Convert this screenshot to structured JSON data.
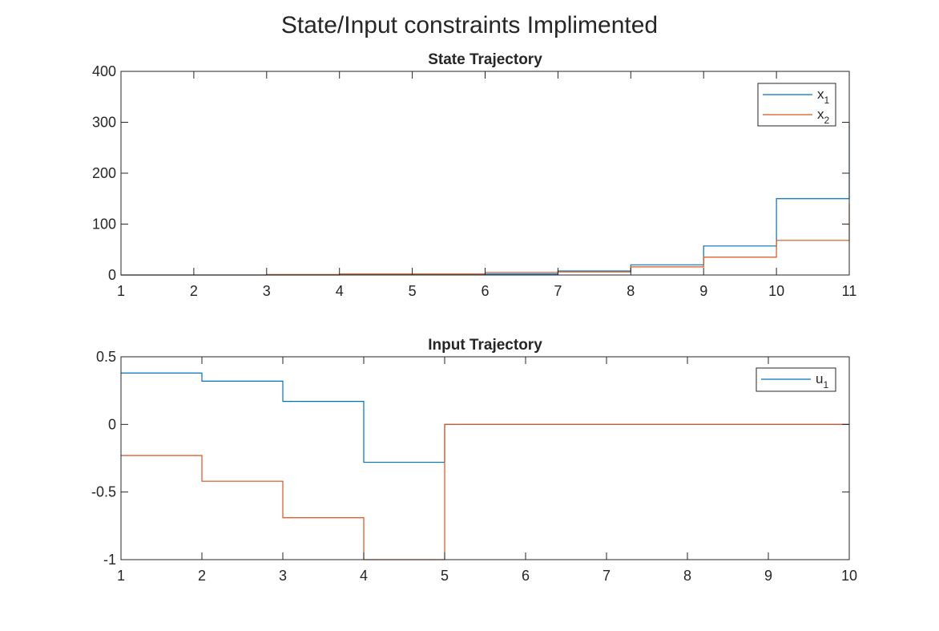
{
  "figure": {
    "title": "State/Input constraints Implimented"
  },
  "colors": {
    "series1": "#0072BD",
    "series2": "#D95319",
    "axes": "#262626",
    "background": "#ffffff"
  },
  "chart_data": [
    {
      "type": "line",
      "style": "stairs",
      "title": "State Trajectory",
      "xlabel": "",
      "ylabel": "",
      "xlim": [
        1,
        11
      ],
      "ylim": [
        0,
        400
      ],
      "xticks": [
        1,
        2,
        3,
        4,
        5,
        6,
        7,
        8,
        9,
        10,
        11
      ],
      "yticks": [
        0,
        100,
        200,
        300,
        400
      ],
      "grid": false,
      "legend_position": "top-right",
      "x": [
        1,
        2,
        3,
        4,
        5,
        6,
        7,
        8,
        9,
        10,
        11
      ],
      "series": [
        {
          "name": "x",
          "subscript": "1",
          "values": [
            0,
            0,
            0,
            1,
            1,
            2,
            8,
            20,
            57,
            150,
            300
          ]
        },
        {
          "name": "x",
          "subscript": "2",
          "values": [
            0,
            0,
            1,
            2,
            2,
            5,
            6,
            16,
            35,
            68,
            140
          ]
        }
      ]
    },
    {
      "type": "line",
      "style": "stairs",
      "title": "Input Trajectory",
      "xlabel": "",
      "ylabel": "",
      "xlim": [
        1,
        10
      ],
      "ylim": [
        -1,
        0.5
      ],
      "xticks": [
        1,
        2,
        3,
        4,
        5,
        6,
        7,
        8,
        9,
        10
      ],
      "yticks": [
        -1,
        -0.5,
        0,
        0.5
      ],
      "grid": false,
      "legend_position": "top-right",
      "x": [
        1,
        2,
        3,
        4,
        5,
        6,
        7,
        8,
        9,
        10
      ],
      "series": [
        {
          "name": "u",
          "subscript": "1",
          "values": [
            0.38,
            0.32,
            0.17,
            -0.28,
            0,
            0,
            0,
            0,
            0,
            0
          ]
        },
        {
          "name": "",
          "subscript": "",
          "values": [
            -0.23,
            -0.42,
            -0.69,
            -1,
            0,
            0,
            0,
            0,
            0,
            0
          ]
        }
      ]
    }
  ]
}
